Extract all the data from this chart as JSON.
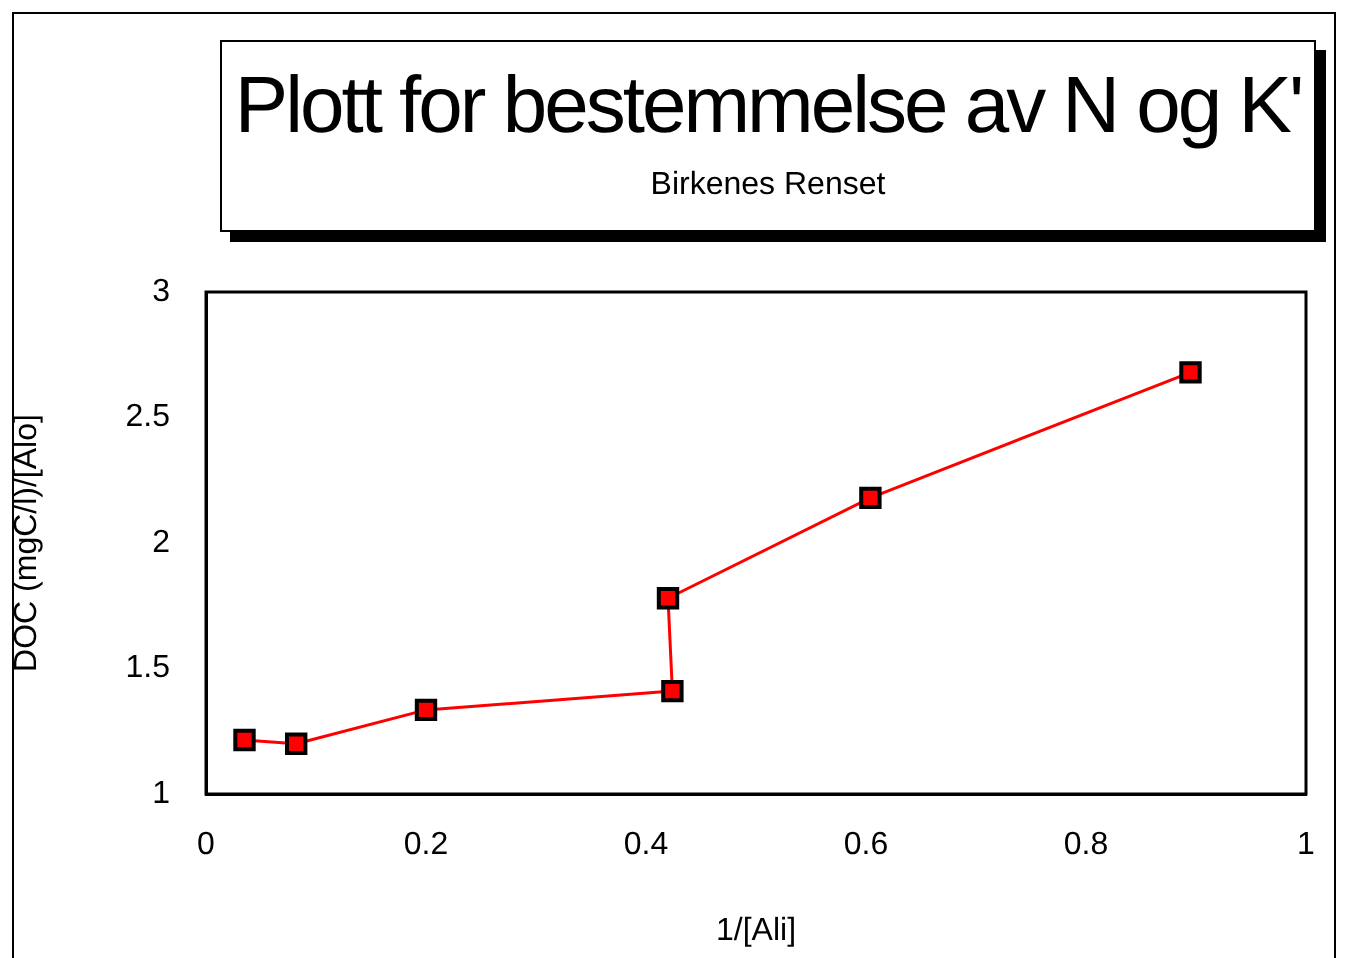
{
  "chart_data": {
    "type": "line",
    "title": "Plott for bestemmelse av N og K'",
    "subtitle": "Birkenes Renset",
    "xlabel": "1/[Ali]",
    "ylabel": "DOC (mgC/l)/[Alo]",
    "series": [
      {
        "color": "#ff0000",
        "x": [
          0.035,
          0.082,
          0.2,
          0.424,
          0.42,
          0.604,
          0.895
        ],
        "values": [
          1.215,
          1.2,
          1.335,
          1.41,
          1.78,
          2.18,
          2.68
        ]
      }
    ],
    "xlim": [
      0,
      1
    ],
    "xticks": [
      0,
      0.2,
      0.4,
      0.6,
      0.8,
      1
    ],
    "ylim": [
      1,
      3
    ],
    "yticks": [
      1,
      1.5,
      2,
      2.5,
      3
    ],
    "grid": false,
    "legend": false,
    "marker": "square",
    "line_style": "solid"
  }
}
